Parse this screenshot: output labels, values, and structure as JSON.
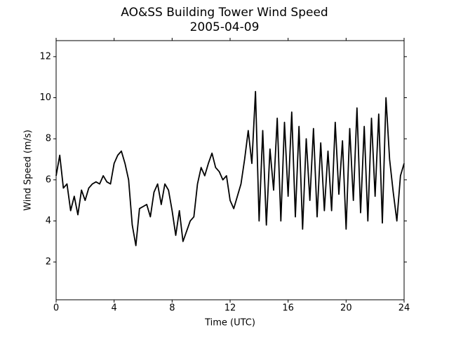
{
  "chart_data": {
    "type": "line",
    "title": "AO&SS Building Tower Wind Speed",
    "subtitle": "2005-04-09",
    "x_label": "Time (UTC)",
    "y_label": "Wind Speed (m/s)",
    "x": [
      0,
      0.25,
      0.5,
      0.75,
      1,
      1.25,
      1.5,
      1.75,
      2,
      2.25,
      2.5,
      2.75,
      3,
      3.25,
      3.5,
      3.75,
      4,
      4.25,
      4.5,
      4.75,
      5,
      5.25,
      5.5,
      5.75,
      6,
      6.25,
      6.5,
      6.75,
      7,
      7.25,
      7.5,
      7.75,
      8,
      8.25,
      8.5,
      8.75,
      9,
      9.25,
      9.5,
      9.75,
      10,
      10.25,
      10.5,
      10.75,
      11,
      11.25,
      11.5,
      11.75,
      12,
      12.25,
      12.5,
      12.75,
      13,
      13.25,
      13.5,
      13.75,
      14,
      14.25,
      14.5,
      14.75,
      15,
      15.25,
      15.5,
      15.75,
      16,
      16.25,
      16.5,
      16.75,
      17,
      17.25,
      17.5,
      17.75,
      18,
      18.25,
      18.5,
      18.75,
      19,
      19.25,
      19.5,
      19.75,
      20,
      20.25,
      20.5,
      20.75,
      21,
      21.25,
      21.5,
      21.75,
      22,
      22.25,
      22.5,
      22.75,
      23,
      23.25,
      23.5,
      23.75,
      24
    ],
    "series": [
      {
        "name": "Wind Speed",
        "color": "#000000",
        "values": [
          6.2,
          7.2,
          5.6,
          5.8,
          4.5,
          5.2,
          4.3,
          5.5,
          5.0,
          5.6,
          5.8,
          5.9,
          5.8,
          6.2,
          5.9,
          5.8,
          6.8,
          7.2,
          7.4,
          6.8,
          6.0,
          3.8,
          2.8,
          4.6,
          4.7,
          4.8,
          4.2,
          5.4,
          5.8,
          4.8,
          5.8,
          5.5,
          4.5,
          3.3,
          4.5,
          3.0,
          3.5,
          4.0,
          4.2,
          5.8,
          6.6,
          6.2,
          6.8,
          7.3,
          6.6,
          6.4,
          6.0,
          6.2,
          5.0,
          4.6,
          5.2,
          5.8,
          7.0,
          8.4,
          6.8,
          10.3,
          4.0,
          8.4,
          3.8,
          7.5,
          5.5,
          9.0,
          4.0,
          8.8,
          5.2,
          9.3,
          4.2,
          8.6,
          3.6,
          8.0,
          5.0,
          8.5,
          4.2,
          7.8,
          4.5,
          7.4,
          4.5,
          8.8,
          5.3,
          7.9,
          3.6,
          8.5,
          5.0,
          9.5,
          4.4,
          8.6,
          4.0,
          9.0,
          5.2,
          9.2,
          3.9,
          10.0,
          7.0,
          5.4,
          4.0,
          6.2,
          6.8
        ]
      }
    ],
    "xlim": [
      0,
      24
    ],
    "xticks": [
      0,
      4,
      8,
      12,
      16,
      20,
      24
    ],
    "ylim": [
      0.16,
      12.78
    ],
    "yticks": [
      2,
      4,
      6,
      8,
      10,
      12
    ],
    "grid": false
  }
}
